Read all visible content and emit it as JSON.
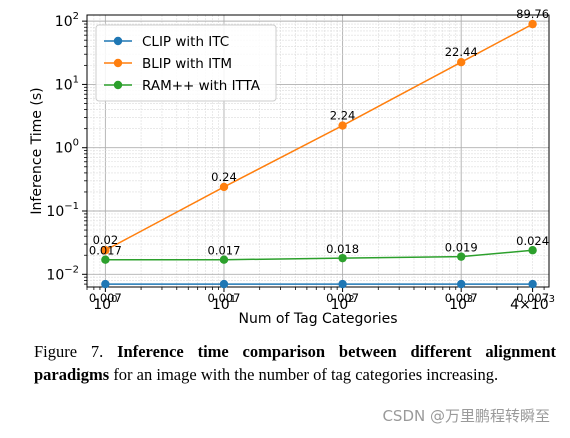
{
  "chart_data": {
    "type": "line",
    "title": "",
    "xlabel": "Num of Tag Categories",
    "ylabel": "Inference Time (s)",
    "xscale": "log",
    "yscale": "log",
    "x": [
      1,
      10,
      100,
      1000,
      4000
    ],
    "x_tick_labels": [
      "10^0",
      "10^1",
      "10^2",
      "10^3",
      "4×10^3"
    ],
    "y_tick_labels": [
      "10^-2",
      "10^-1",
      "10^0",
      "10^1",
      "10^2"
    ],
    "xlim": [
      0.7,
      5500
    ],
    "ylim": [
      0.0063,
      125
    ],
    "grid": true,
    "legend_position": "top-left",
    "series": [
      {
        "name": "CLIP with ITC",
        "color": "#1f77b4",
        "values": [
          0.007,
          0.007,
          0.007,
          0.007,
          0.007
        ],
        "labels": [
          "0.007",
          "0.007",
          "0.007",
          "0.007",
          "0.007"
        ]
      },
      {
        "name": "BLIP with ITM",
        "color": "#ff7f0e",
        "values": [
          0.024,
          0.24,
          2.24,
          22.44,
          89.76
        ],
        "labels": [
          "0.02",
          "0.24",
          "2.24",
          "22.44",
          "89.76"
        ]
      },
      {
        "name": "RAM++ with ITTA",
        "color": "#2ca02c",
        "values": [
          0.017,
          0.017,
          0.018,
          0.019,
          0.024
        ],
        "labels": [
          "0.017",
          "0.017",
          "0.018",
          "0.019",
          "0.024"
        ]
      }
    ]
  },
  "caption": {
    "lead": "Figure 7. ",
    "bold": "Inference time comparison between different alignment paradigms",
    "rest": " for an image with the number of tag categories increasing."
  },
  "watermark": "CSDN @万里鹏程转瞬至"
}
